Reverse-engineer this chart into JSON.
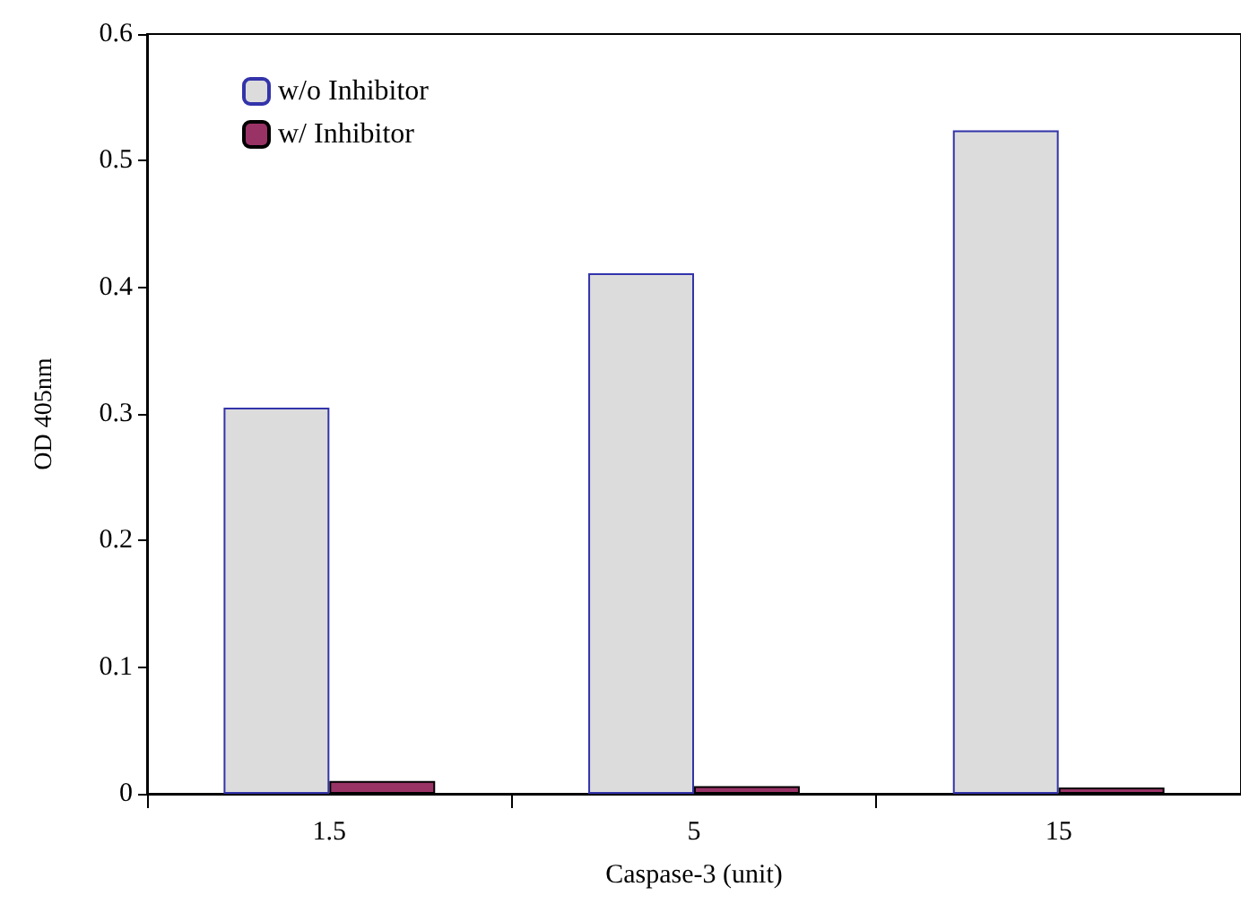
{
  "chart_data": {
    "type": "bar",
    "xlabel": "Caspase-3 (unit)",
    "ylabel": "OD 405nm",
    "categories": [
      "1.5",
      "5",
      "15"
    ],
    "series": [
      {
        "name": "w/o Inhibitor",
        "color": "#dcdcdc",
        "values": [
          0.305,
          0.411,
          0.524
        ]
      },
      {
        "name": "w/ Inhibitor",
        "color": "#993366",
        "values": [
          0.01,
          0.006,
          0.005
        ]
      }
    ],
    "ylim": [
      0,
      0.6
    ],
    "yticks": [
      0,
      0.1,
      0.2,
      0.3,
      0.4,
      0.5,
      0.6
    ],
    "grid": false,
    "legend": "top left"
  }
}
